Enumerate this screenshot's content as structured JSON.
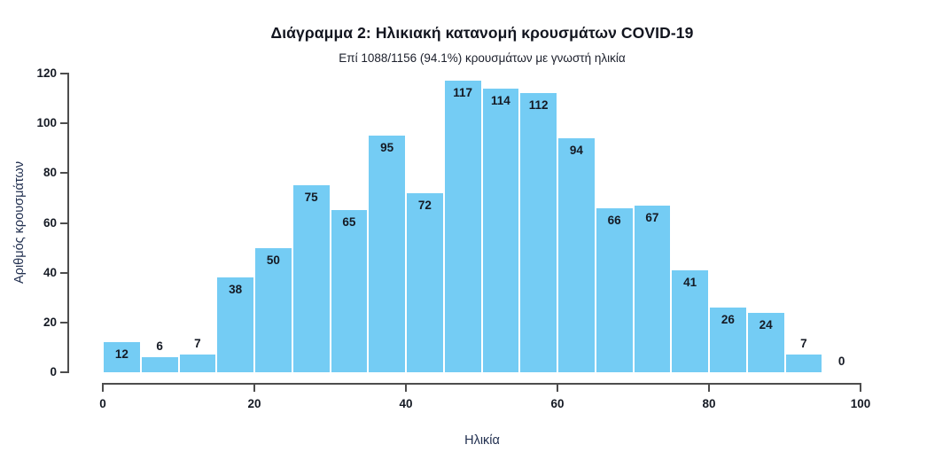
{
  "chart_data": {
    "type": "bar",
    "subtype": "histogram",
    "title": "Διάγραμμα 2: Ηλικιακή κατανομή κρουσμάτων COVID-19",
    "subtitle": "Επί 1088/1156 (94.1%) κρουσμάτων με γνωστή ηλικία",
    "xlabel": "Ηλικία",
    "ylabel": "Αριθμός κρουσμάτων",
    "bin_start": 0,
    "bin_width": 5,
    "bins": [
      "0-5",
      "5-10",
      "10-15",
      "15-20",
      "20-25",
      "25-30",
      "30-35",
      "35-40",
      "40-45",
      "45-50",
      "50-55",
      "55-60",
      "60-65",
      "65-70",
      "70-75",
      "75-80",
      "80-85",
      "85-90",
      "90-95",
      "95-100"
    ],
    "values": [
      12,
      6,
      7,
      38,
      50,
      75,
      65,
      95,
      72,
      117,
      114,
      112,
      94,
      66,
      67,
      41,
      26,
      24,
      7,
      0
    ],
    "x_ticks": [
      0,
      20,
      40,
      60,
      80,
      100
    ],
    "y_ticks": [
      0,
      20,
      40,
      60,
      80,
      100,
      120
    ],
    "xlim": [
      0,
      100
    ],
    "ylim": [
      0,
      120
    ],
    "grid": false,
    "legend": false,
    "bar_color": "#74CCF4",
    "bar_gap_color": "#ffffff",
    "axis_color": "#4d4d4d",
    "text_color": "#151a24",
    "axis_title_color": "#223050",
    "total_labeled": "1088",
    "total_cases": "1156",
    "pct_known": "94.1%"
  }
}
